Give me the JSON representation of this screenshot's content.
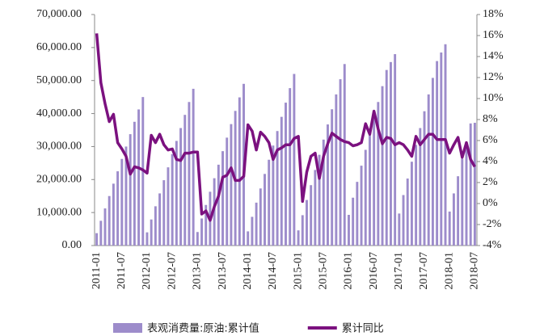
{
  "chart_data": {
    "type": "bar-line",
    "categories": [
      "2011-01",
      null,
      null,
      null,
      null,
      null,
      "2011-07",
      null,
      null,
      null,
      null,
      null,
      "2012-01",
      null,
      null,
      null,
      null,
      null,
      "2012-07",
      null,
      null,
      null,
      null,
      null,
      "2013-01",
      null,
      null,
      null,
      null,
      null,
      "2013-07",
      null,
      null,
      null,
      null,
      null,
      "2014-01",
      null,
      null,
      null,
      null,
      null,
      "2014-07",
      null,
      null,
      null,
      null,
      null,
      "2015-01",
      null,
      null,
      null,
      null,
      null,
      "2015-07",
      null,
      null,
      null,
      null,
      null,
      "2016-01",
      null,
      null,
      null,
      null,
      null,
      "2016-07",
      null,
      null,
      null,
      null,
      null,
      "2017-01",
      null,
      null,
      null,
      null,
      null,
      "2017-07",
      null,
      null,
      null,
      null,
      null,
      "2018-01",
      null,
      null,
      null,
      null,
      null,
      "2018-07"
    ],
    "series": [
      {
        "name": "表观消费量:原油:累计值",
        "color": "#9d8ccb",
        "axis": "y",
        "values": [
          3750,
          7500,
          11250,
          15000,
          18750,
          22500,
          26250,
          30000,
          33750,
          37500,
          41250,
          45000,
          4000,
          7900,
          11900,
          15800,
          19800,
          23700,
          27700,
          31700,
          35600,
          39600,
          43500,
          47500,
          4100,
          8200,
          12300,
          16300,
          20400,
          24500,
          28600,
          32700,
          36800,
          40800,
          44900,
          49000,
          4300,
          8700,
          13000,
          17300,
          21700,
          26000,
          30300,
          34700,
          39000,
          43300,
          47700,
          52000,
          4600,
          9200,
          13800,
          18300,
          22900,
          27500,
          32100,
          36700,
          41300,
          45800,
          50400,
          55000,
          9300,
          14500,
          19300,
          24200,
          29000,
          33800,
          38700,
          43500,
          48300,
          53200,
          55600,
          58000,
          9700,
          15300,
          20300,
          25400,
          30500,
          35600,
          40700,
          45800,
          50800,
          55900,
          58500,
          61000,
          10300,
          15800,
          21000,
          26300,
          31500,
          37000,
          37200
        ]
      },
      {
        "name": "累计同比",
        "color": "#7b117f",
        "axis": "y2",
        "values": [
          16.2,
          11.5,
          9.5,
          7.8,
          8.5,
          5.8,
          5.2,
          4.5,
          2.8,
          3.5,
          3.4,
          3.2,
          2.9,
          6.5,
          5.8,
          6.6,
          5.6,
          5.1,
          5.2,
          4.2,
          4.1,
          4.8,
          4.8,
          4.9,
          4.9,
          -1.0,
          -0.7,
          -1.6,
          -0.3,
          0.7,
          2.5,
          2.7,
          3.4,
          2.2,
          2.2,
          2.6,
          7.5,
          6.9,
          5.1,
          6.8,
          6.4,
          5.8,
          4.2,
          5.1,
          5.3,
          5.6,
          5.6,
          6.2,
          6.4,
          0.2,
          3.0,
          4.5,
          4.8,
          2.4,
          4.5,
          5.7,
          6.7,
          6.4,
          6.1,
          5.9,
          5.8,
          5.5,
          5.6,
          5.8,
          7.6,
          6.6,
          8.8,
          7.1,
          5.7,
          6.3,
          6.2,
          5.6,
          5.8,
          5.6,
          5.1,
          4.5,
          6.4,
          5.6,
          6.1,
          6.6,
          6.6,
          6.1,
          6.1,
          6.1,
          4.8,
          5.6,
          6.3,
          4.4,
          5.8,
          4.2,
          3.5
        ]
      }
    ],
    "ylim": [
      0,
      70000
    ],
    "yticks": [
      {
        "value": 0,
        "label": "0.00"
      },
      {
        "value": 10000,
        "label": "10,000.00"
      },
      {
        "value": 20000,
        "label": "20,000.00"
      },
      {
        "value": 30000,
        "label": "30,000.00"
      },
      {
        "value": 40000,
        "label": "40,000.00"
      },
      {
        "value": 50000,
        "label": "50,000.00"
      },
      {
        "value": 60000,
        "label": "60,000.00"
      },
      {
        "value": 70000,
        "label": "70,000.00"
      }
    ],
    "y2lim": [
      -4,
      18
    ],
    "y2ticks": [
      {
        "value": -4,
        "label": "-4%"
      },
      {
        "value": -2,
        "label": "-2%"
      },
      {
        "value": 0,
        "label": "0%"
      },
      {
        "value": 2,
        "label": "2%"
      },
      {
        "value": 4,
        "label": "4%"
      },
      {
        "value": 6,
        "label": "6%"
      },
      {
        "value": 8,
        "label": "8%"
      },
      {
        "value": 10,
        "label": "10%"
      },
      {
        "value": 12,
        "label": "12%"
      },
      {
        "value": 14,
        "label": "14%"
      },
      {
        "value": 16,
        "label": "16%"
      },
      {
        "value": 18,
        "label": "18%"
      }
    ],
    "legend": "bottom"
  }
}
